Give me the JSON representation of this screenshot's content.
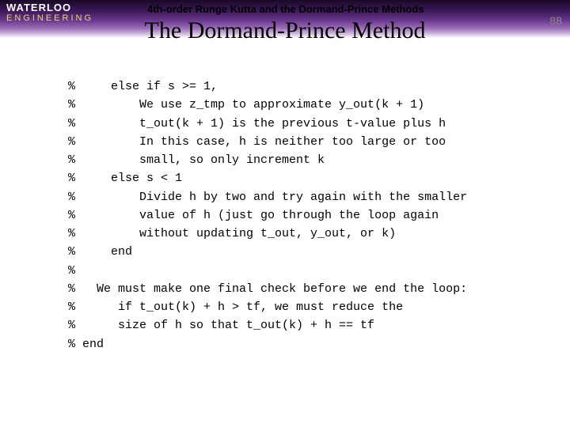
{
  "header": {
    "logo_top": "WATERLOO",
    "logo_bottom": "ENGINEERING",
    "subtitle": "4th-order Runge Kutta and the Dormand-Prince Methods",
    "title": "The Dormand-Prince Method",
    "slide_number": "88"
  },
  "code": {
    "lines": [
      "%     else if s >= 1,",
      "%         We use z_tmp to approximate y_out(k + 1)",
      "%         t_out(k + 1) is the previous t-value plus h",
      "%         In this case, h is neither too large or too",
      "%         small, so only increment k",
      "%     else s < 1",
      "%         Divide h by two and try again with the smaller",
      "%         value of h (just go through the loop again",
      "%         without updating t_out, y_out, or k)",
      "%     end",
      "%",
      "%   We must make one final check before we end the loop:",
      "%      if t_out(k) + h > tf, we must reduce the",
      "%      size of h so that t_out(k) + h == tf",
      "% end"
    ]
  }
}
